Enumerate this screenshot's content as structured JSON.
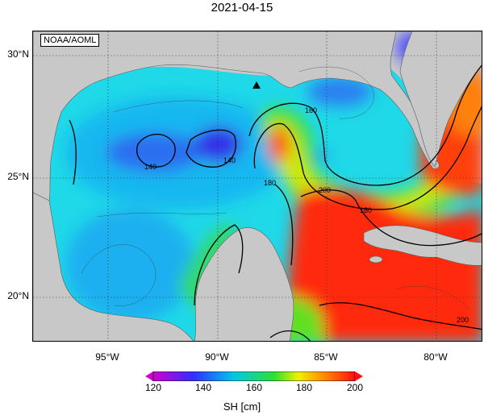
{
  "title": "2021-04-15",
  "credit": "NOAA/AOML",
  "lat_labels": [
    "30°N",
    "25°N",
    "20°N"
  ],
  "lon_labels": [
    "95°W",
    "90°W",
    "85°W",
    "80°W"
  ],
  "contour_labels": [
    "140",
    "140",
    "160",
    "180",
    "180",
    "200",
    "200"
  ],
  "colorbar": {
    "ticks": [
      "120",
      "140",
      "160",
      "180",
      "200"
    ],
    "label": "SH [cm]",
    "colors": [
      "#d000d0",
      "#3030ff",
      "#00c8e8",
      "#30e030",
      "#f0f000",
      "#ff8000",
      "#ff1010"
    ]
  },
  "colors": {
    "land": "#c8c8c8",
    "cool_eddy": "#3050ff",
    "warm_core": "#ff2010"
  }
}
